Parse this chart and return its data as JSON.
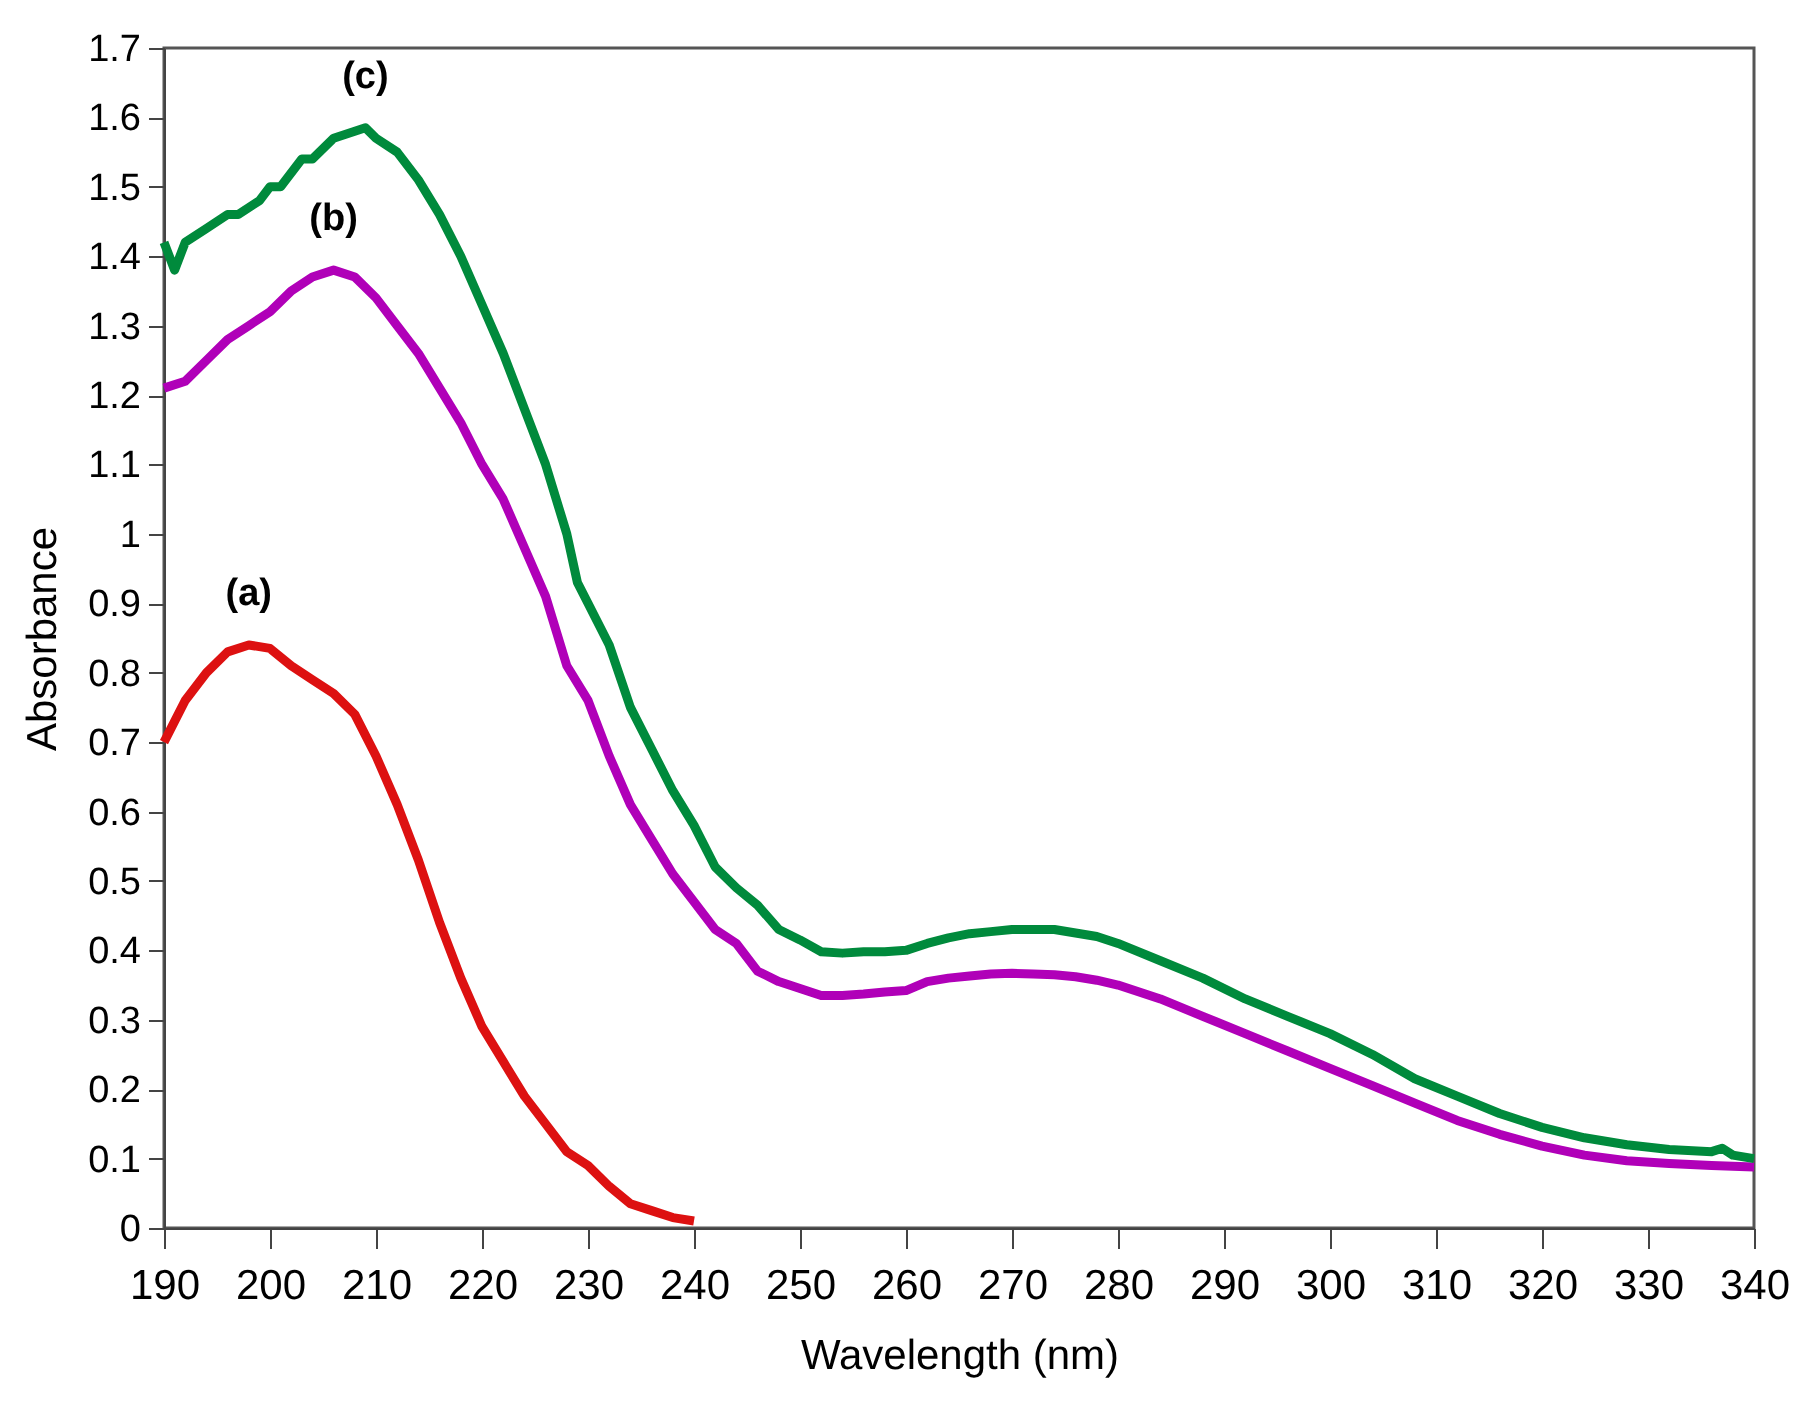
{
  "chart_data": {
    "type": "line",
    "xlabel": "Wavelength (nm)",
    "ylabel": "Absorbance",
    "xlim": [
      190,
      340
    ],
    "xticks": [
      190,
      200,
      210,
      220,
      230,
      240,
      250,
      260,
      270,
      280,
      290,
      300,
      310,
      320,
      330,
      340
    ],
    "ylim": [
      0,
      1.7
    ],
    "yticks": [
      0,
      0.1,
      0.2,
      0.3,
      0.4,
      0.5,
      0.6,
      0.7,
      0.8,
      0.9,
      1,
      1.1,
      1.2,
      1.3,
      1.4,
      1.5,
      1.6,
      1.7
    ],
    "grid": false,
    "legend": false,
    "marker": "none",
    "line_style": "solid",
    "series": [
      {
        "name": "(a)",
        "color": "#dd1111",
        "x": [
          190,
          192,
          194,
          196,
          198,
          200,
          202,
          204,
          206,
          208,
          210,
          212,
          214,
          216,
          218,
          220,
          222,
          224,
          226,
          228,
          230,
          232,
          234,
          236,
          238,
          240
        ],
        "values": [
          0.7,
          0.76,
          0.8,
          0.83,
          0.84,
          0.835,
          0.81,
          0.79,
          0.77,
          0.74,
          0.68,
          0.61,
          0.53,
          0.44,
          0.36,
          0.29,
          0.24,
          0.19,
          0.15,
          0.11,
          0.09,
          0.06,
          0.035,
          0.025,
          0.015,
          0.01
        ]
      },
      {
        "name": "(b)",
        "color": "#b000b8",
        "x": [
          190,
          192,
          194,
          196,
          198,
          200,
          202,
          204,
          206,
          208,
          210,
          212,
          214,
          216,
          218,
          220,
          222,
          224,
          226,
          228,
          230,
          232,
          234,
          236,
          238,
          240,
          242,
          244,
          246,
          248,
          250,
          252,
          254,
          256,
          258,
          260,
          262,
          264,
          266,
          268,
          270,
          272,
          274,
          276,
          278,
          280,
          284,
          288,
          292,
          296,
          300,
          304,
          308,
          312,
          316,
          320,
          324,
          328,
          332,
          336,
          340
        ],
        "values": [
          1.21,
          1.22,
          1.25,
          1.28,
          1.3,
          1.32,
          1.35,
          1.37,
          1.38,
          1.37,
          1.34,
          1.3,
          1.26,
          1.21,
          1.16,
          1.1,
          1.05,
          0.98,
          0.91,
          0.81,
          0.76,
          0.68,
          0.61,
          0.56,
          0.51,
          0.47,
          0.43,
          0.41,
          0.37,
          0.355,
          0.345,
          0.335,
          0.335,
          0.337,
          0.34,
          0.342,
          0.355,
          0.36,
          0.363,
          0.366,
          0.367,
          0.366,
          0.365,
          0.362,
          0.357,
          0.35,
          0.33,
          0.305,
          0.28,
          0.255,
          0.23,
          0.205,
          0.18,
          0.155,
          0.135,
          0.118,
          0.105,
          0.097,
          0.093,
          0.09,
          0.088
        ]
      },
      {
        "name": "(c)",
        "color": "#008a3c",
        "x": [
          190,
          191,
          192,
          194,
          196,
          197,
          199,
          200,
          201,
          203,
          204,
          206,
          208,
          209,
          210,
          212,
          214,
          216,
          218,
          220,
          222,
          224,
          226,
          228,
          229,
          230,
          232,
          234,
          236,
          238,
          240,
          242,
          244,
          246,
          248,
          250,
          252,
          254,
          256,
          258,
          260,
          262,
          264,
          266,
          268,
          270,
          274,
          276,
          278,
          280,
          284,
          288,
          292,
          296,
          300,
          304,
          308,
          312,
          316,
          320,
          324,
          328,
          332,
          336,
          337,
          338,
          340
        ],
        "values": [
          1.42,
          1.38,
          1.42,
          1.44,
          1.46,
          1.46,
          1.48,
          1.5,
          1.5,
          1.54,
          1.54,
          1.57,
          1.58,
          1.585,
          1.57,
          1.55,
          1.51,
          1.46,
          1.4,
          1.33,
          1.26,
          1.18,
          1.1,
          1.0,
          0.93,
          0.9,
          0.84,
          0.75,
          0.69,
          0.63,
          0.58,
          0.52,
          0.49,
          0.465,
          0.43,
          0.415,
          0.398,
          0.396,
          0.398,
          0.398,
          0.4,
          0.41,
          0.418,
          0.424,
          0.427,
          0.43,
          0.43,
          0.425,
          0.42,
          0.41,
          0.385,
          0.36,
          0.33,
          0.305,
          0.28,
          0.25,
          0.215,
          0.19,
          0.165,
          0.145,
          0.13,
          0.12,
          0.113,
          0.11,
          0.115,
          0.105,
          0.1
        ]
      }
    ]
  }
}
